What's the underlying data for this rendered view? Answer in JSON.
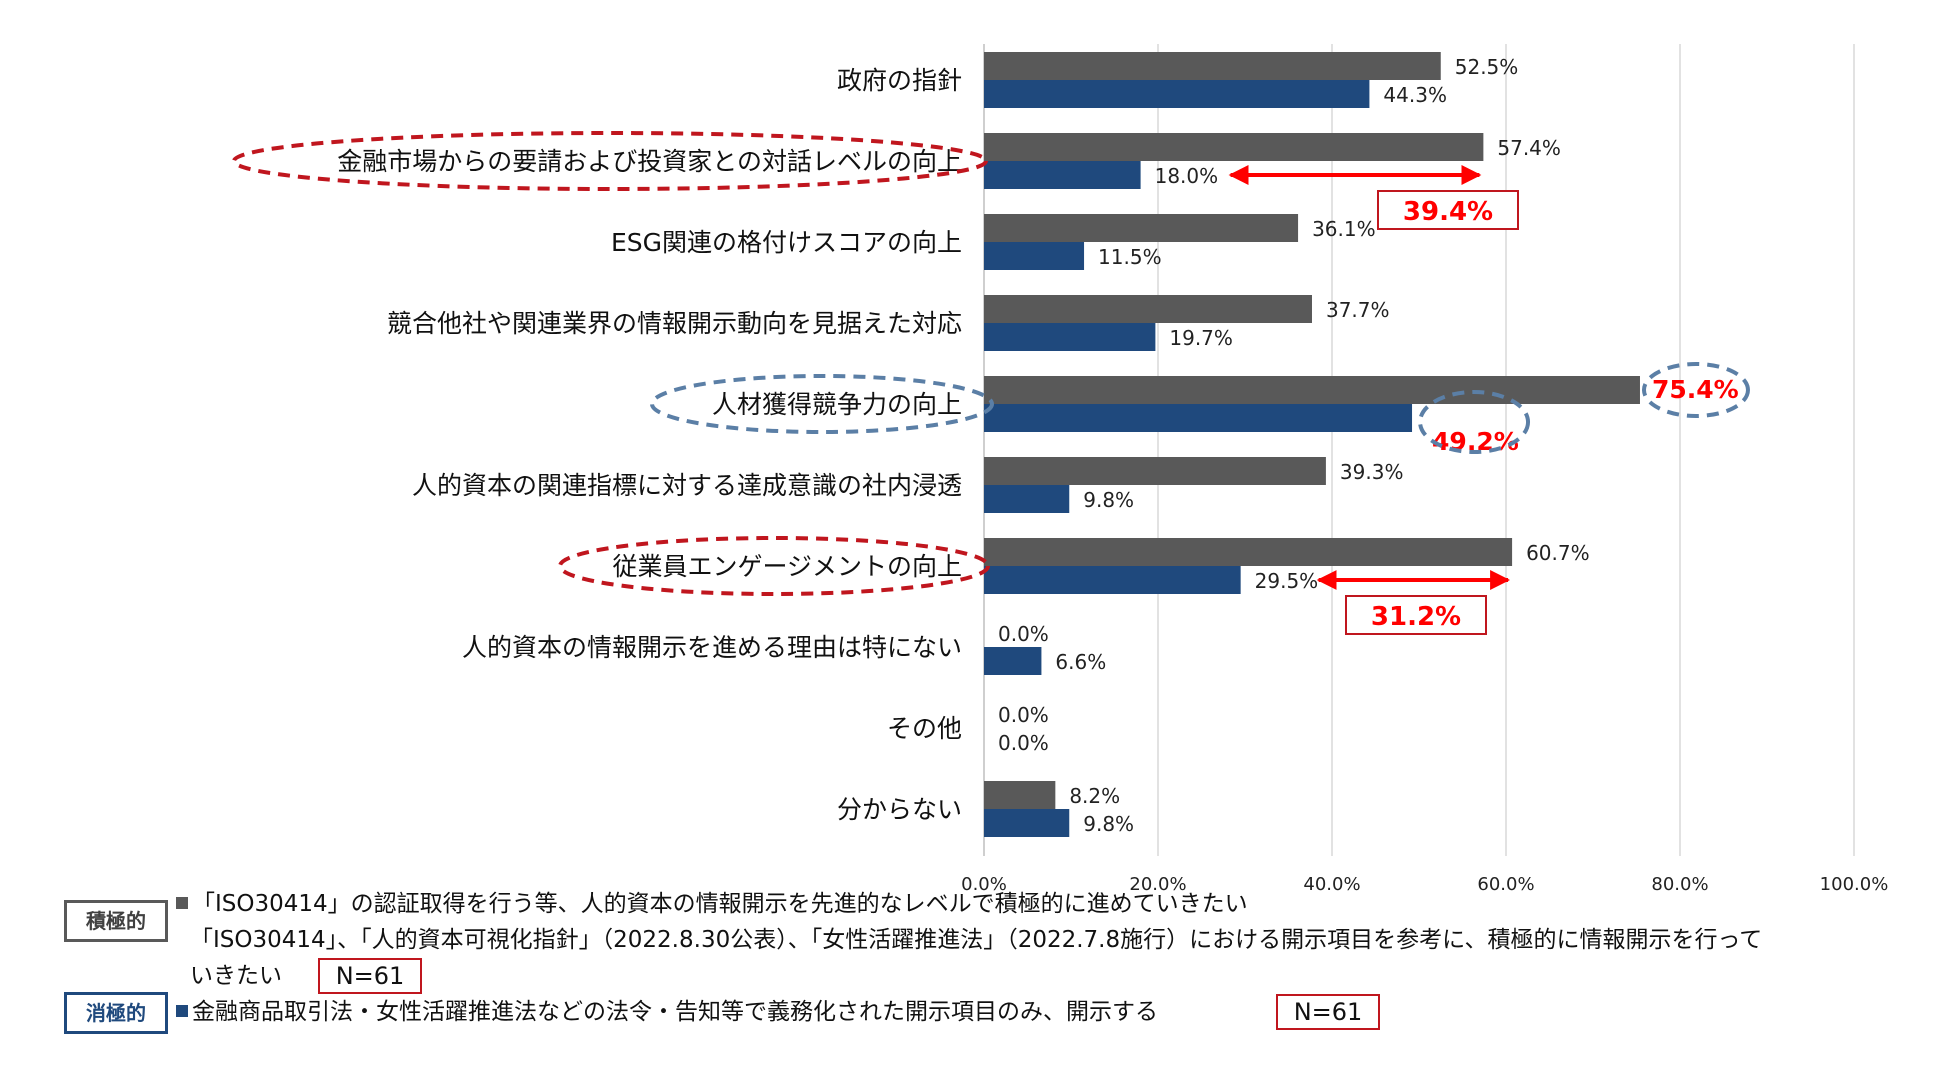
{
  "chart_data": {
    "type": "bar",
    "orientation": "horizontal",
    "categories": [
      "政府の指針",
      "金融市場からの要請および投資家との対話レベルの向上",
      "ESG関連の格付けスコアの向上",
      "競合他社や関連業界の情報開示動向を見据えた対応",
      "人材獲得競争力の向上",
      "人的資本の関連指標に対する達成意識の社内浸透",
      "従業員エンゲージメントの向上",
      "人的資本の情報開示を進める理由は特にない",
      "その他",
      "分からない"
    ],
    "series": [
      {
        "name": "積極的",
        "color": "#595959",
        "values": [
          52.5,
          57.4,
          36.1,
          37.7,
          75.4,
          39.3,
          60.7,
          0.0,
          0.0,
          8.2
        ],
        "labels": [
          "52.5%",
          "57.4%",
          "36.1%",
          "37.7%",
          "75.4%",
          "39.3%",
          "60.7%",
          "0.0%",
          "0.0%",
          "8.2%"
        ]
      },
      {
        "name": "消極的",
        "color": "#1f497d",
        "values": [
          44.3,
          18.0,
          11.5,
          19.7,
          49.2,
          9.8,
          29.5,
          6.6,
          0.0,
          9.8
        ],
        "labels": [
          "44.3%",
          "18.0%",
          "11.5%",
          "19.7%",
          "49.2%",
          "9.8%",
          "29.5%",
          "6.6%",
          "0.0%",
          "9.8%"
        ]
      }
    ],
    "xlim": [
      0,
      100
    ],
    "xticks": [
      "0.0%",
      "20.0%",
      "40.0%",
      "60.0%",
      "80.0%",
      "100.0%"
    ],
    "grid": true,
    "annotations": [
      {
        "category_index": 1,
        "gap_label": "39.4%",
        "from": 18.0,
        "to": 57.4
      },
      {
        "category_index": 6,
        "gap_label": "31.2%",
        "from": 29.5,
        "to": 60.7
      }
    ],
    "highlighted_categories": [
      1,
      4,
      6
    ],
    "highlight_colors": {
      "red": "#c0161e",
      "blue": "#5b7fa6",
      "arrow": "#ff0000"
    }
  },
  "legend": {
    "positive_badge": "積極的",
    "positive_text_1": "「ISO30414」の認証取得を行う等、人的資本の情報開示を先進的なレベルで積極的に進めていきたい",
    "positive_text_2": "「ISO30414」、「人的資本可視化指針」（2022.8.30公表）、「女性活躍推進法」（2022.7.8施行）における開示項目を参考に、積極的に情報開示を行って",
    "positive_text_3": "いきたい",
    "positive_n": "N=61",
    "negative_badge": "消極的",
    "negative_text": "金融商品取引法・女性活躍推進法などの法令・告知等で義務化された開示項目のみ、開示する",
    "negative_n": "N=61"
  }
}
